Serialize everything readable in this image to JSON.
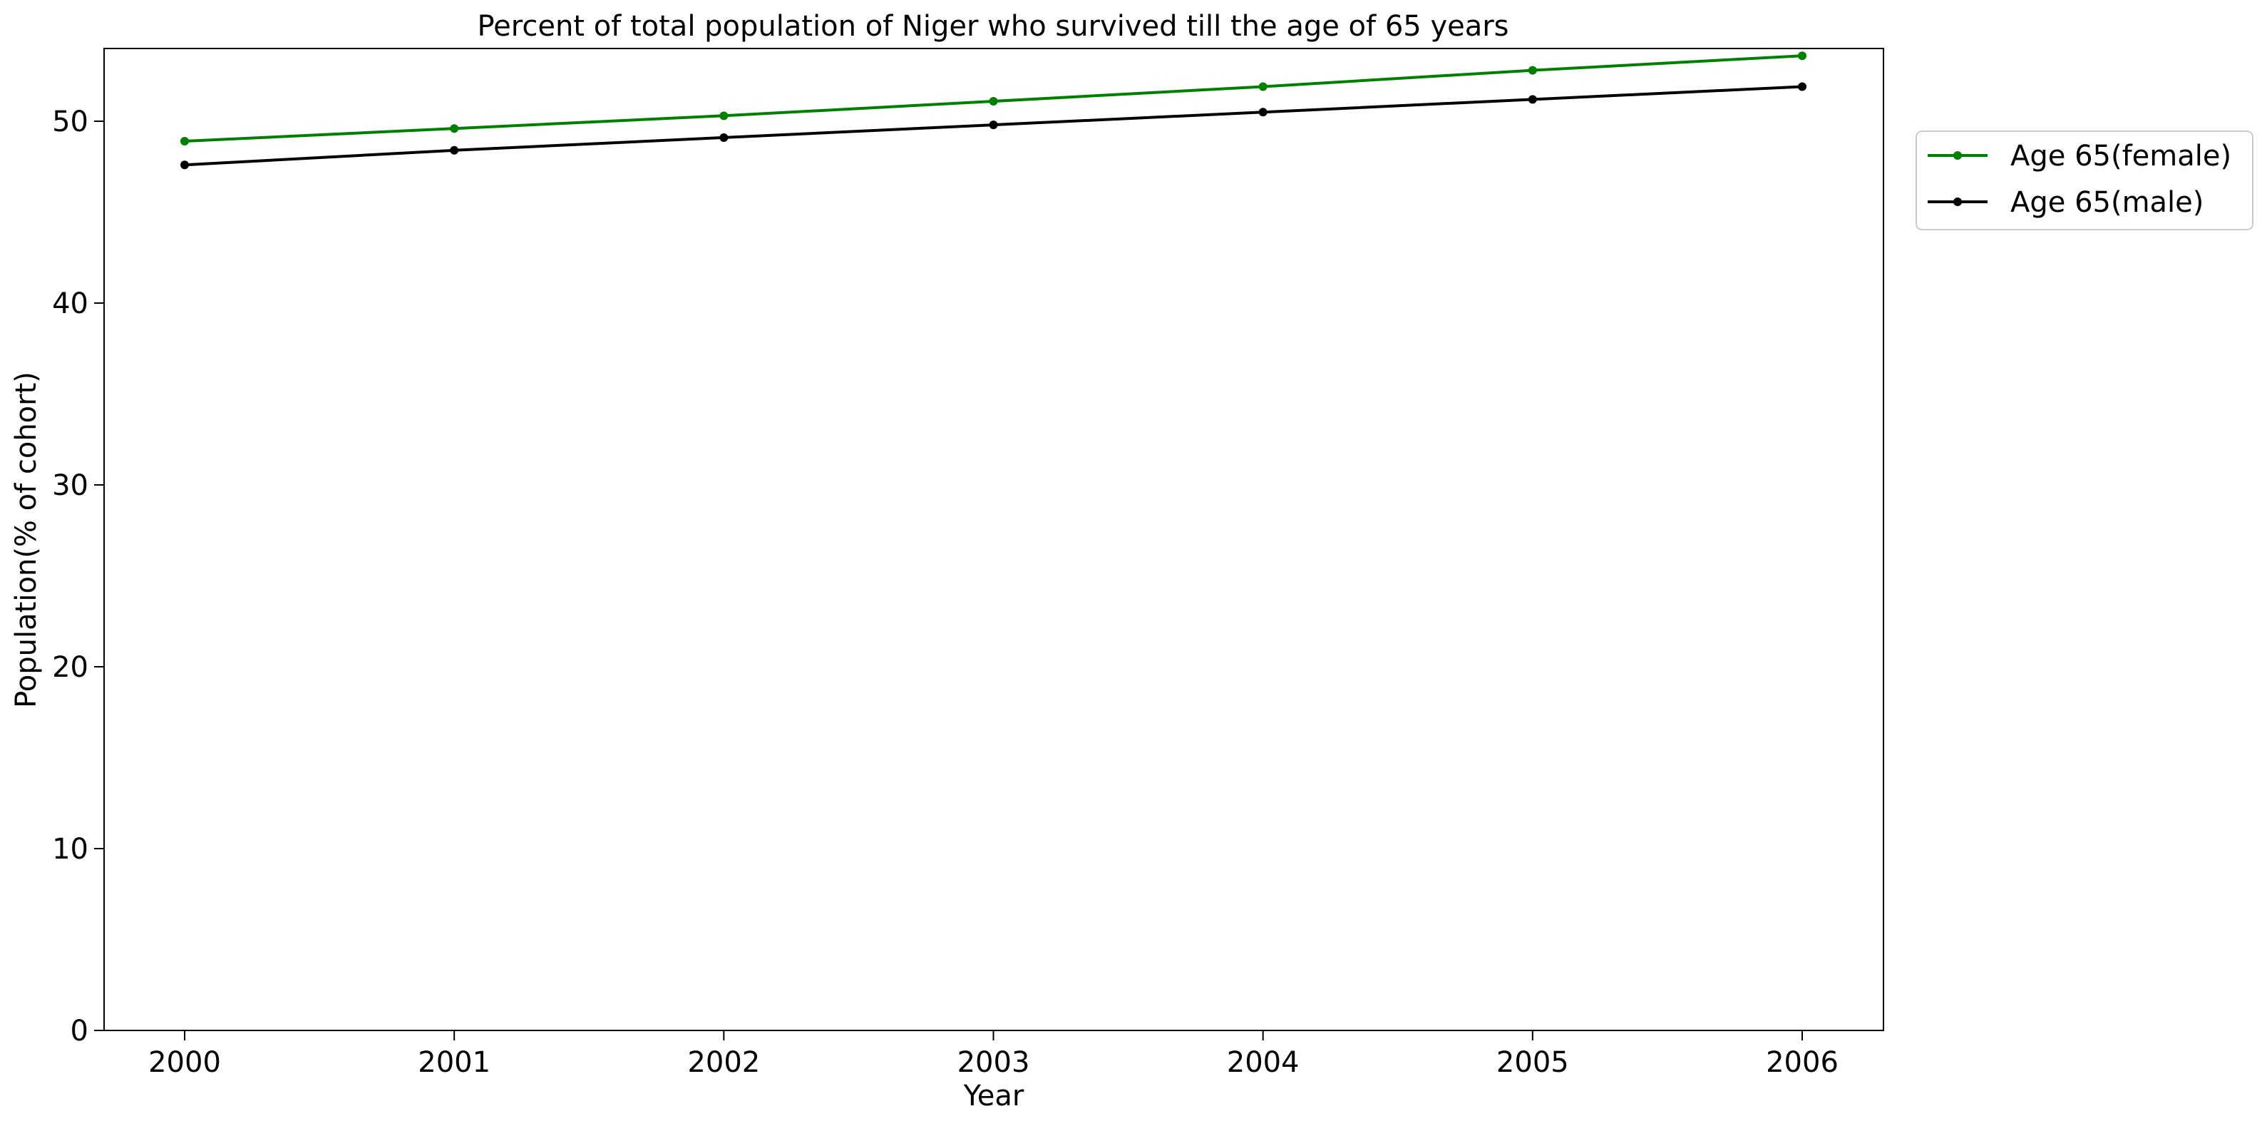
{
  "chart_data": {
    "type": "line",
    "title": "Percent of total population of Niger who survived till the age of 65 years",
    "xlabel": "Year",
    "ylabel": "Population(% of cohort)",
    "x": [
      2000,
      2001,
      2002,
      2003,
      2004,
      2005,
      2006
    ],
    "xticks": [
      "2000",
      "2001",
      "2002",
      "2003",
      "2004",
      "2005",
      "2006"
    ],
    "yticks": [
      "0",
      "10",
      "20",
      "30",
      "40",
      "50"
    ],
    "ylim": [
      0,
      54
    ],
    "grid": false,
    "legend_position": "outside top-right",
    "series": [
      {
        "name": "Age 65(female)",
        "color": "#008000",
        "marker": "dot",
        "values": [
          48.9,
          49.6,
          50.3,
          51.1,
          51.9,
          52.8,
          53.6
        ]
      },
      {
        "name": "Age 65(male)",
        "color": "#000000",
        "marker": "dot",
        "values": [
          47.6,
          48.4,
          49.1,
          49.8,
          50.5,
          51.2,
          51.9
        ]
      }
    ]
  }
}
